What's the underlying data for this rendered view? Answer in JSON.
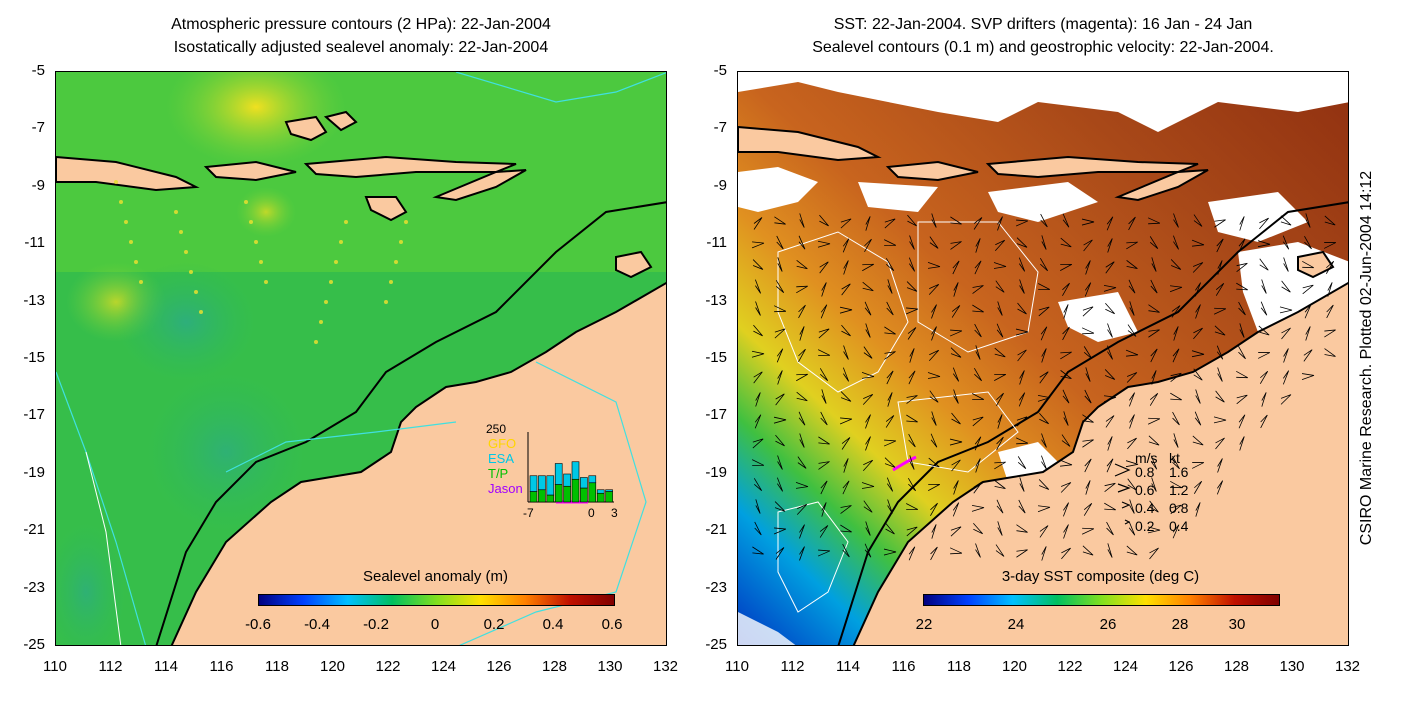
{
  "left": {
    "title_line1": "Atmospheric pressure contours (2 HPa): 22-Jan-2004",
    "title_line2": "Isostatically adjusted sealevel anomaly: 22-Jan-2004",
    "colorbar_label": "Sealevel anomaly (m)",
    "colorbar_ticks": [
      "-0.6",
      "-0.4",
      "-0.2",
      "0",
      "0.2",
      "0.4",
      "0.6"
    ],
    "inset": {
      "ymax_label": "250",
      "missions": [
        {
          "name": "GFO",
          "color": "#ffd500"
        },
        {
          "name": "ESA",
          "color": "#00c8e6"
        },
        {
          "name": "T/P",
          "color": "#00c000"
        },
        {
          "name": "Jason",
          "color": "#a000ff"
        }
      ],
      "x_ticks": [
        "-7",
        "0",
        "3"
      ],
      "bars": [
        {
          "cyan": 45,
          "green": 30
        },
        {
          "cyan": 40,
          "green": 35
        },
        {
          "cyan": 55,
          "green": 20
        },
        {
          "cyan": 60,
          "green": 50
        },
        {
          "cyan": 35,
          "green": 45
        },
        {
          "cyan": 50,
          "green": 65
        },
        {
          "cyan": 30,
          "green": 40
        },
        {
          "cyan": 20,
          "green": 55
        },
        {
          "cyan": 10,
          "green": 25
        },
        {
          "cyan": 5,
          "green": 30
        }
      ]
    }
  },
  "right": {
    "title_line1": "SST: 22-Jan-2004. SVP drifters (magenta): 16 Jan - 24 Jan",
    "title_line2": "Sealevel contours (0.1 m) and geostrophic velocity: 22-Jan-2004.",
    "colorbar_label": "3-day SST composite (deg C)",
    "colorbar_ticks": [
      "22",
      "24",
      "26",
      "28",
      "30"
    ],
    "velocity_legend": {
      "header_ms": "m/s",
      "header_kt": "kt",
      "rows": [
        {
          "ms": "0.8",
          "kt": "1.6"
        },
        {
          "ms": "0.6",
          "kt": "1.2"
        },
        {
          "ms": "0.4",
          "kt": "0.8"
        },
        {
          "ms": "0.2",
          "kt": "0.4"
        }
      ]
    }
  },
  "y_ticks": [
    "-5",
    "-7",
    "-9",
    "-11",
    "-13",
    "-15",
    "-17",
    "-19",
    "-21",
    "-23",
    "-25"
  ],
  "x_ticks": [
    "110",
    "112",
    "114",
    "116",
    "118",
    "120",
    "122",
    "124",
    "126",
    "128",
    "130",
    "132"
  ],
  "side_label": "CSIRO Marine Research. Plotted 02-Jun-2004 14:12",
  "colors": {
    "land": "#fac9a0",
    "ocean_green": "#3cc83c",
    "sst_orange": "#c8641e",
    "sst_dark": "#a03c14",
    "drifter": "#ff00ff",
    "contour_cyan": "#40e0e0"
  }
}
